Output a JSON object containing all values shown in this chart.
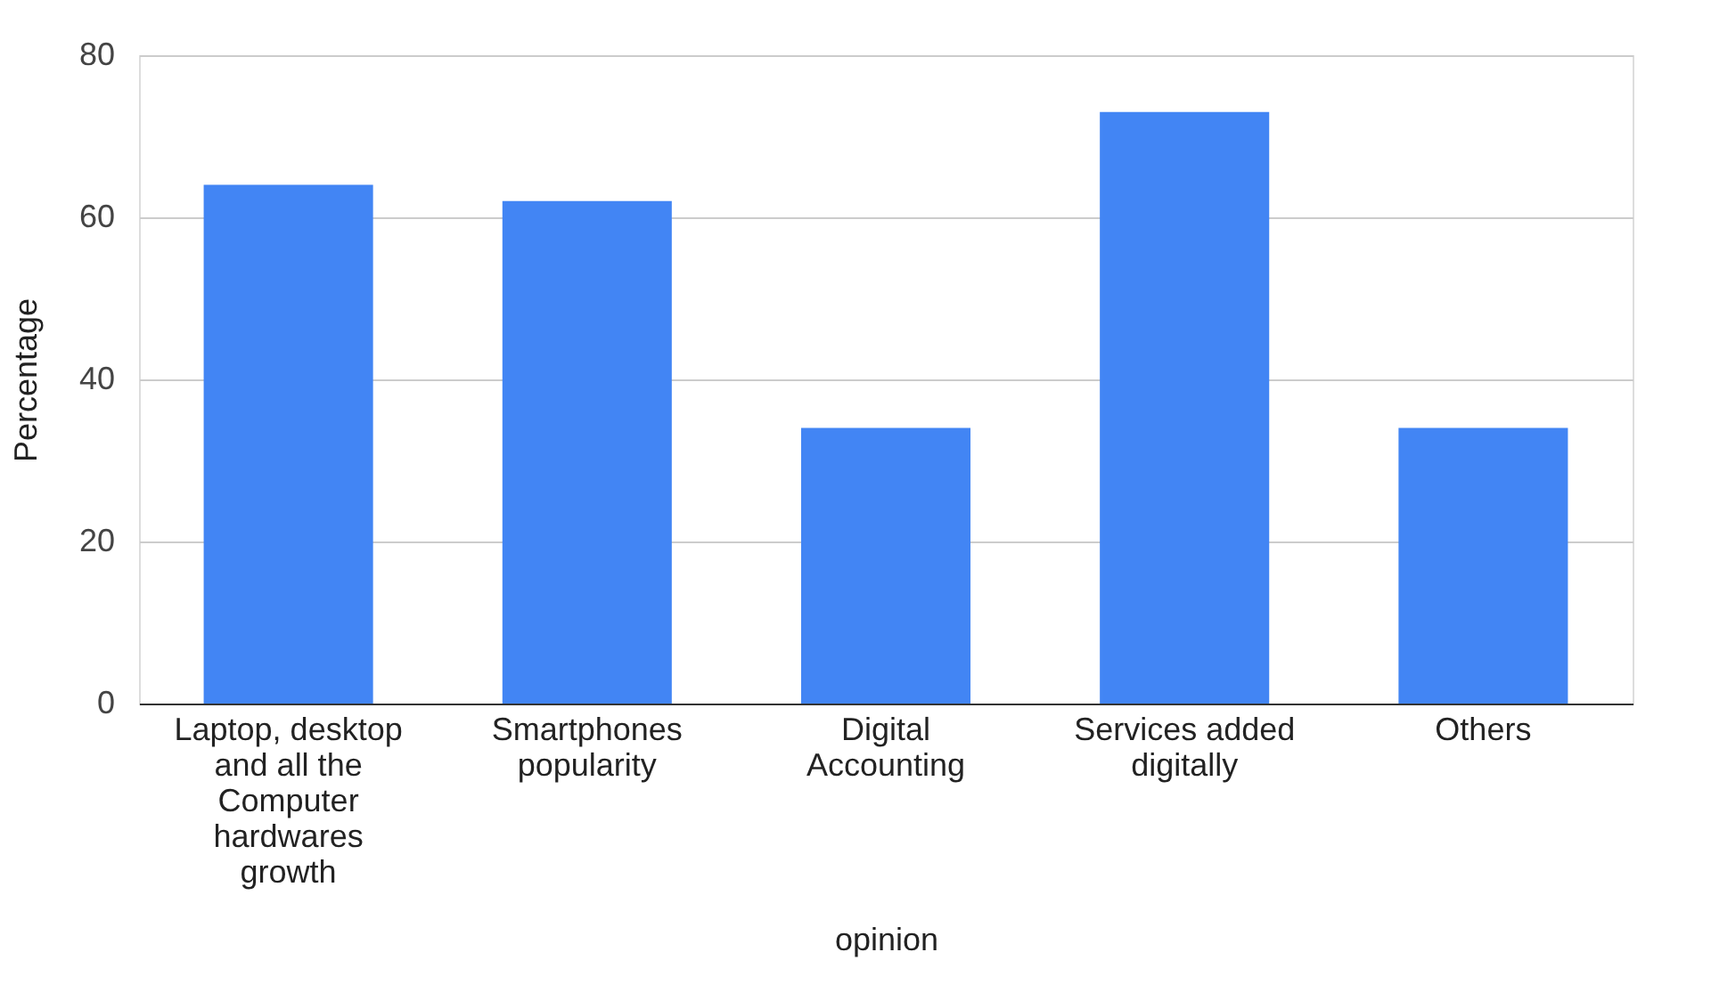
{
  "chart_data": {
    "type": "bar",
    "xlabel": "opinion",
    "ylabel": "Percentage",
    "categories": [
      "Laptop, desktop and all the Computer hardwares growth",
      "Smartphones popularity",
      "Digital Accounting",
      "Services added digitally",
      "Others"
    ],
    "values": [
      64,
      62,
      34,
      73,
      34
    ],
    "color": "#4285f4",
    "ylim": [
      0,
      80
    ],
    "yticks": [
      0,
      20,
      40,
      60,
      80
    ],
    "grid": "y"
  }
}
